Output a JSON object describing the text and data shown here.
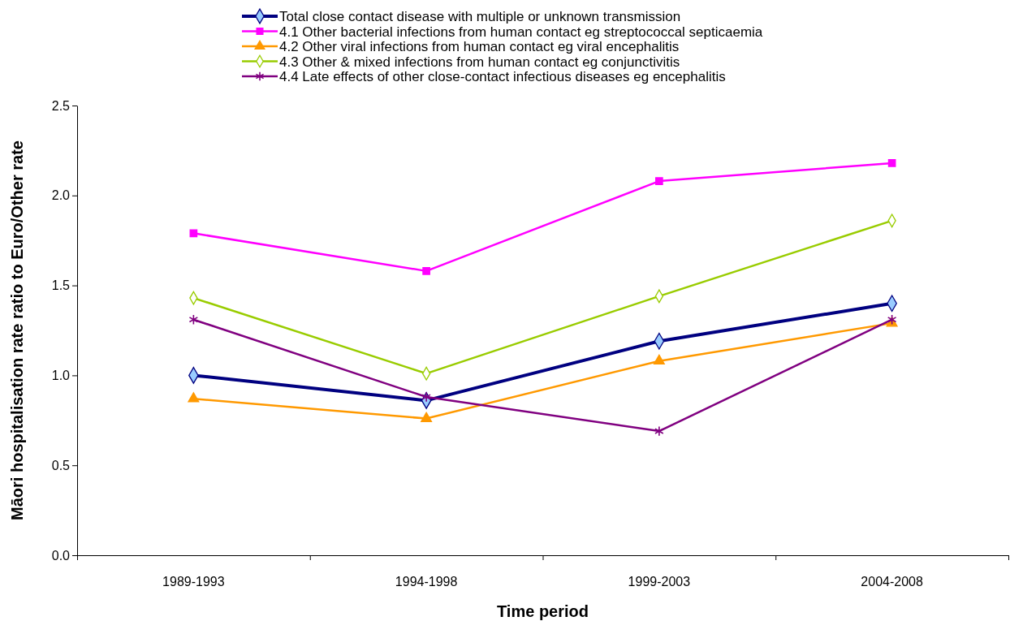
{
  "chart_data": {
    "type": "line",
    "xlabel": "Time period",
    "ylabel": "Māori hospitalisation rate ratio to Euro/Other rate",
    "categories": [
      "1989-1993",
      "1994-1998",
      "1999-2003",
      "2004-2008"
    ],
    "series": [
      {
        "name": "Total close contact disease with multiple or unknown transmission",
        "color": "#000080",
        "marker": "diamond",
        "values": [
          1.0,
          0.86,
          1.19,
          1.4
        ]
      },
      {
        "name": "4.1 Other bacterial infections from human contact eg streptococcal septicaemia",
        "color": "#ff00ff",
        "marker": "square",
        "values": [
          1.79,
          1.58,
          2.08,
          2.18
        ]
      },
      {
        "name": "4.2 Other viral infections from human contact eg viral encephalitis",
        "color": "#ff9900",
        "marker": "triangle",
        "values": [
          0.87,
          0.76,
          1.08,
          1.29
        ]
      },
      {
        "name": "4.3 Other & mixed infections from human contact  eg conjunctivitis",
        "color": "#99cc00",
        "marker": "diamond",
        "values": [
          1.43,
          1.01,
          1.44,
          1.86
        ]
      },
      {
        "name": "4.4 Late effects of other close-contact infectious diseases  eg encephalitis",
        "color": "#800080",
        "marker": "cross",
        "values": [
          1.31,
          0.88,
          0.69,
          1.31
        ]
      }
    ],
    "ylim": [
      0,
      2.5
    ],
    "yticks": [
      {
        "value": 0,
        "label": "0.0"
      },
      0.5,
      {
        "value": 1,
        "label": "1.0"
      },
      1.5,
      {
        "value": 2,
        "label": "2.0"
      },
      2.5
    ],
    "grid": false,
    "legend": "top"
  }
}
